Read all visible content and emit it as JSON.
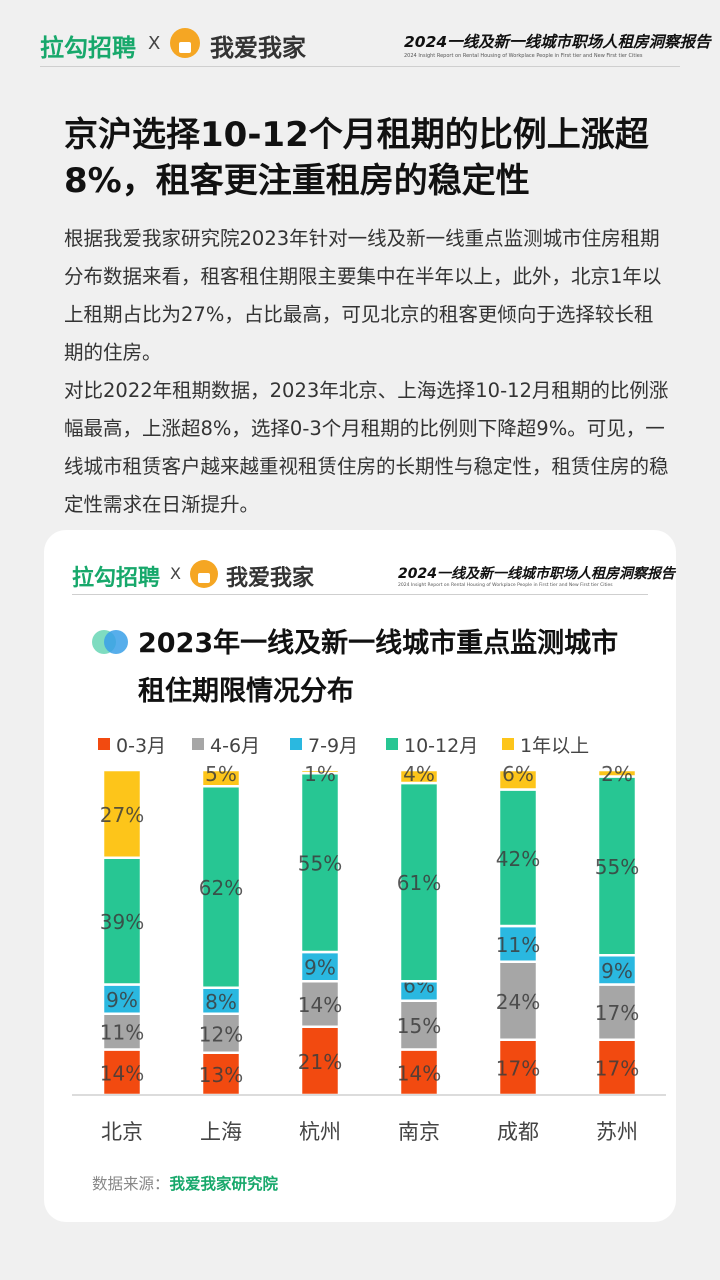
{
  "header": {
    "brand_left": "拉勾招聘",
    "separator": "X",
    "brand_right": "我爱我家",
    "report_title": "2024一线及新一线城市职场人租房洞察报告",
    "report_subtitle": "2024 Insight Report on Rental Housing of Workplace People in First tier and New First tier Cities"
  },
  "headline": "京沪选择10-12个月租期的比例上涨超8%，租客更注重租房的稳定性",
  "paragraph1": "根据我爱我家研究院2023年针对一线及新一线重点监测城市住房租期分布数据来看，租客租住期限主要集中在半年以上，此外，北京1年以上租期占比为27%，占比最高，可见北京的租客更倾向于选择较长租期的住房。",
  "paragraph2": "对比2022年租期数据，2023年北京、上海选择10-12月租期的比例涨幅最高，上涨超8%，选择0-3个月租期的比例则下降超9%。可见，一线城市租赁客户越来越重视租赁住房的长期性与稳定性，租赁住房的稳定性需求在日渐提升。",
  "card": {
    "chart_title": "2023年一线及新一线城市重点监测城市租住期限情况分布",
    "source_label": "数据来源：",
    "source_value": "我爱我家研究院"
  },
  "chart_data": {
    "type": "bar",
    "stacked": true,
    "title": "2023年一线及新一线城市重点监测城市租住期限情况分布",
    "categories": [
      "北京",
      "上海",
      "杭州",
      "南京",
      "成都",
      "苏州"
    ],
    "series": [
      {
        "name": "0-3月",
        "color": "#f24a10",
        "values": [
          14,
          13,
          21,
          14,
          17,
          17
        ]
      },
      {
        "name": "4-6月",
        "color": "#a6a6a6",
        "values": [
          11,
          12,
          14,
          15,
          24,
          17
        ]
      },
      {
        "name": "7-9月",
        "color": "#2ab8e0",
        "values": [
          9,
          8,
          9,
          6,
          11,
          9
        ]
      },
      {
        "name": "10-12月",
        "color": "#27c693",
        "values": [
          39,
          62,
          55,
          61,
          42,
          55
        ]
      },
      {
        "name": "1年以上",
        "color": "#fdc51a",
        "values": [
          27,
          5,
          1,
          4,
          6,
          2
        ]
      }
    ],
    "value_suffix": "%",
    "legend_position": "top",
    "grid": false
  }
}
